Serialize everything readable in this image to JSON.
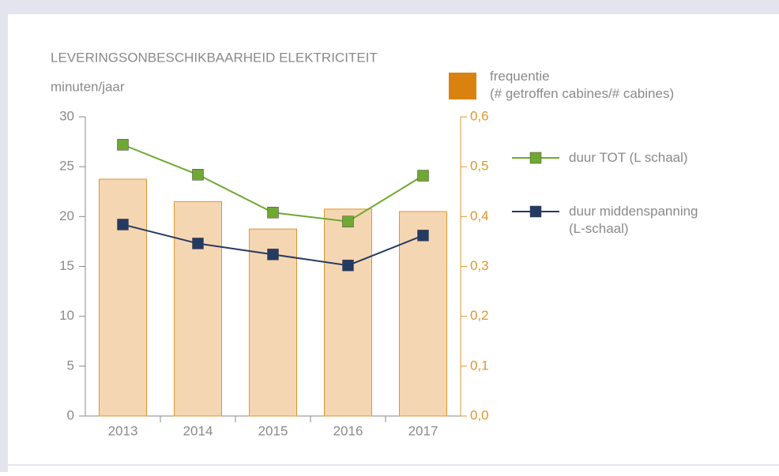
{
  "chart_data": {
    "type": "bar_line",
    "title": "LEVERINGSONBESCHIKBAARHEID ELEKTRICITEIT",
    "y_label": "minuten/jaar",
    "categories": [
      "2013",
      "2014",
      "2015",
      "2016",
      "2017"
    ],
    "ylim": [
      0,
      30
    ],
    "yticks": [
      0,
      5,
      10,
      15,
      20,
      25,
      30
    ],
    "y2lim": [
      0,
      0.6
    ],
    "y2ticks": [
      {
        "value": 0,
        "label": "0,0"
      },
      {
        "value": 0.1,
        "label": "0,1"
      },
      {
        "value": 0.2,
        "label": "0,2"
      },
      {
        "value": 0.3,
        "label": "0,3"
      },
      {
        "value": 0.4,
        "label": "0,4"
      },
      {
        "value": 0.5,
        "label": "0,5"
      },
      {
        "value": 0.6,
        "label": "0,6"
      }
    ],
    "series": [
      {
        "name": "frequentie\n(# getroffen cabines/# cabines)",
        "type": "bar",
        "axis": "y2",
        "color": "#f5d6b2",
        "edge_color": "#e0962e",
        "legend_color": "#d9820f",
        "values": [
          0.475,
          0.43,
          0.375,
          0.415,
          0.41
        ]
      },
      {
        "name": "duur TOT (L schaal)",
        "type": "line",
        "color": "#6fa832",
        "values": [
          27.2,
          24.2,
          20.4,
          19.5,
          24.1
        ]
      },
      {
        "name": "duur middenspanning\n(L-schaal)",
        "type": "line",
        "color": "#253a62",
        "values": [
          19.2,
          17.3,
          16.2,
          15.1,
          18.1
        ]
      }
    ]
  }
}
